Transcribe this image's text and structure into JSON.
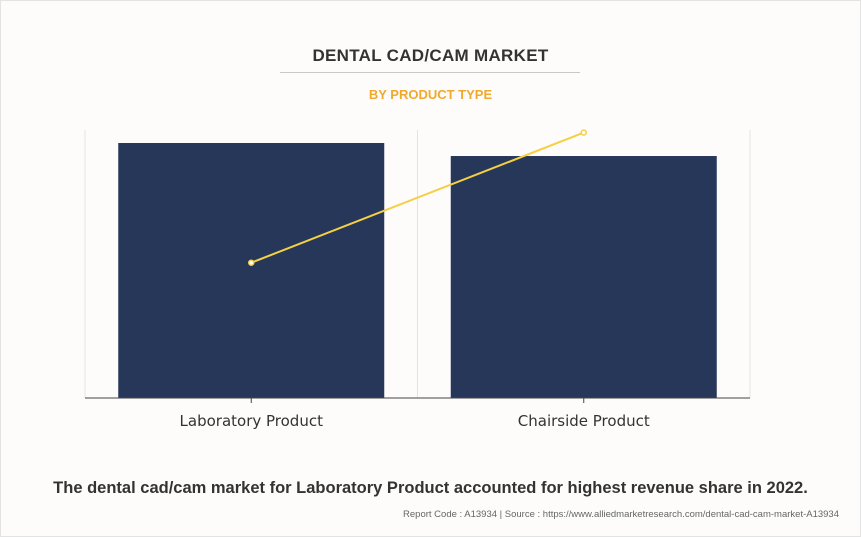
{
  "header": {
    "title": "DENTAL CAD/CAM MARKET",
    "subtitle": "BY PRODUCT TYPE"
  },
  "colors": {
    "bar": "#263759",
    "line": "#f5cf44",
    "subtitle": "#f0a92c",
    "grid": "#e3e3e3",
    "axis": "#444444"
  },
  "chart_data": {
    "type": "bar",
    "categories": [
      "Laboratory Product",
      "Chairside Product"
    ],
    "series": [
      {
        "values": [
          98,
          93
        ]
      },
      {
        "type": "line",
        "values": [
          52,
          102
        ]
      }
    ],
    "ylim": [
      0,
      103
    ],
    "grid": "vertical"
  },
  "footer": {
    "caption": "The dental cad/cam market for Laboratory Product accounted for highest revenue share in 2022.",
    "source": "Report Code : A13934  |  Source : https://www.alliedmarketresearch.com/dental-cad-cam-market-A13934"
  }
}
